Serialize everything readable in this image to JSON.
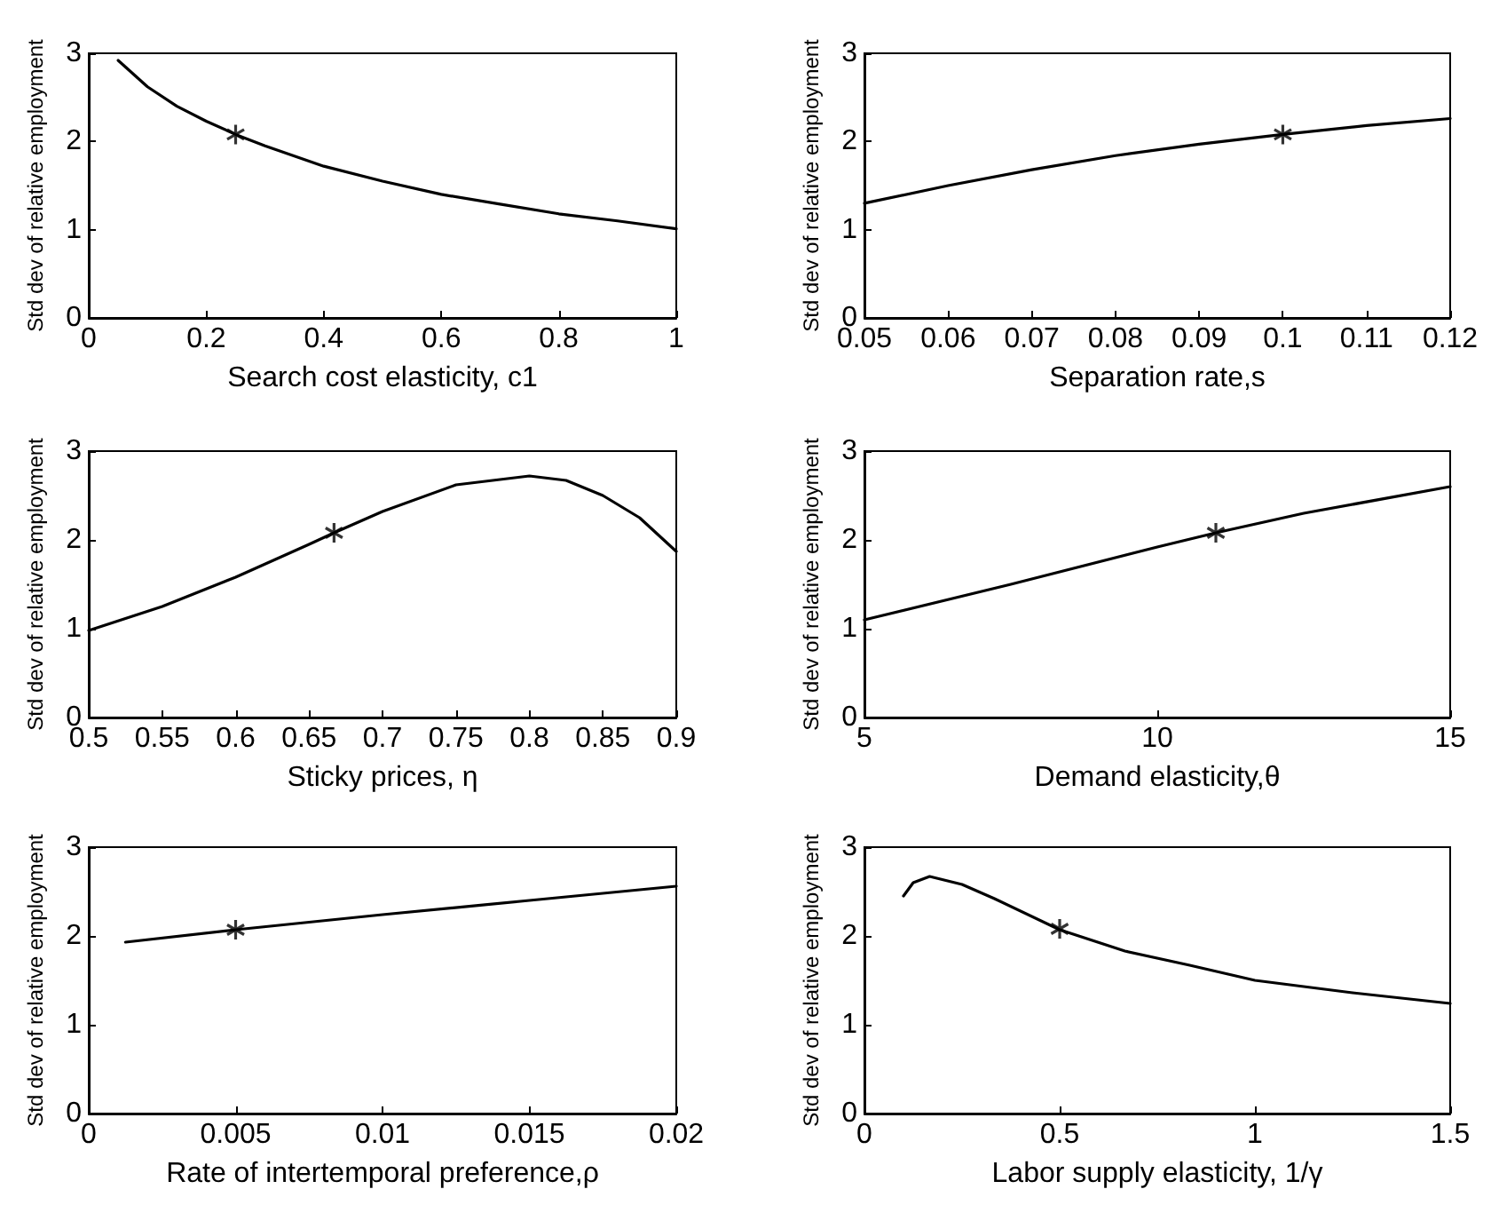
{
  "chart_data": [
    {
      "type": "line",
      "xlabel": "Search cost elasticity, c1",
      "ylabel": "Std dev of relative employment",
      "xlim": [
        0,
        1
      ],
      "xticks": [
        0,
        0.2,
        0.4,
        0.6,
        0.8,
        1
      ],
      "ylim": [
        0,
        3
      ],
      "yticks": [
        0,
        1,
        2,
        3
      ],
      "marker": "none",
      "series": [
        {
          "color": "#000000",
          "x": [
            0.05,
            0.1,
            0.15,
            0.2,
            0.25,
            0.3,
            0.4,
            0.5,
            0.6,
            0.7,
            0.8,
            0.9,
            1
          ],
          "values": [
            2.92,
            2.62,
            2.4,
            2.23,
            2.08,
            1.95,
            1.72,
            1.55,
            1.4,
            1.29,
            1.18,
            1.1,
            1.01
          ]
        },
        {
          "type": "scatter",
          "marker": "cross",
          "color": "#000000",
          "x": [
            0.25
          ],
          "values": [
            2.08
          ]
        }
      ]
    },
    {
      "type": "line",
      "xlabel": "Separation rate,s",
      "ylabel": "Std dev of relative employment",
      "xlim": [
        0.05,
        0.12
      ],
      "xticks": [
        0.05,
        0.06,
        0.07,
        0.08,
        0.09,
        0.1,
        0.11,
        0.12
      ],
      "ylim": [
        0,
        3
      ],
      "yticks": [
        0,
        1,
        2,
        3
      ],
      "marker": "none",
      "series": [
        {
          "color": "#000000",
          "x": [
            0.05,
            0.06,
            0.07,
            0.08,
            0.09,
            0.1,
            0.11,
            0.12
          ],
          "values": [
            1.3,
            1.5,
            1.68,
            1.84,
            1.97,
            2.08,
            2.18,
            2.26
          ]
        },
        {
          "type": "scatter",
          "marker": "cross",
          "color": "#000000",
          "x": [
            0.1
          ],
          "values": [
            2.08
          ]
        }
      ]
    },
    {
      "type": "line",
      "xlabel": "Sticky prices, η",
      "ylabel": "Std dev of relative employment",
      "xlim": [
        0.5,
        0.9
      ],
      "xticks": [
        0.5,
        0.55,
        0.6,
        0.65,
        0.7,
        0.75,
        0.8,
        0.85,
        0.9
      ],
      "ylim": [
        0,
        3
      ],
      "yticks": [
        0,
        1,
        2,
        3
      ],
      "marker": "none",
      "series": [
        {
          "color": "#000000",
          "x": [
            0.5,
            0.55,
            0.6,
            0.65,
            0.667,
            0.7,
            0.75,
            0.8,
            0.825,
            0.85,
            0.875,
            0.9
          ],
          "values": [
            0.98,
            1.25,
            1.58,
            1.95,
            2.08,
            2.32,
            2.62,
            2.72,
            2.67,
            2.5,
            2.25,
            1.87
          ]
        },
        {
          "type": "scatter",
          "marker": "cross",
          "color": "#000000",
          "x": [
            0.667
          ],
          "values": [
            2.08
          ]
        }
      ]
    },
    {
      "type": "line",
      "xlabel": "Demand elasticity,θ",
      "ylabel": "Std dev of relative employment",
      "xlim": [
        5,
        15
      ],
      "xticks": [
        5,
        10,
        15
      ],
      "ylim": [
        0,
        3
      ],
      "yticks": [
        0,
        1,
        2,
        3
      ],
      "marker": "none",
      "series": [
        {
          "color": "#000000",
          "x": [
            5,
            7.5,
            10,
            11,
            12.5,
            15
          ],
          "values": [
            1.1,
            1.5,
            1.92,
            2.08,
            2.3,
            2.6
          ]
        },
        {
          "type": "scatter",
          "marker": "cross",
          "color": "#000000",
          "x": [
            11
          ],
          "values": [
            2.08
          ]
        }
      ]
    },
    {
      "type": "line",
      "xlabel": "Rate of intertemporal preference,ρ",
      "ylabel": "Std dev of relative employment",
      "xlim": [
        0,
        0.02
      ],
      "xticks": [
        0,
        0.005,
        0.01,
        0.015,
        0.02
      ],
      "ylim": [
        0,
        3
      ],
      "yticks": [
        0,
        1,
        2,
        3
      ],
      "marker": "none",
      "series": [
        {
          "color": "#000000",
          "x": [
            0.00125,
            0.005,
            0.01,
            0.015,
            0.02
          ],
          "values": [
            1.93,
            2.07,
            2.24,
            2.4,
            2.56
          ]
        },
        {
          "type": "scatter",
          "marker": "cross",
          "color": "#000000",
          "x": [
            0.005
          ],
          "values": [
            2.07
          ]
        }
      ]
    },
    {
      "type": "line",
      "xlabel": "Labor supply elasticity, 1/γ",
      "ylabel": "Std dev of relative employment",
      "xlim": [
        0,
        1.5
      ],
      "xticks": [
        0,
        0.5,
        1,
        1.5
      ],
      "ylim": [
        0,
        3
      ],
      "yticks": [
        0,
        1,
        2,
        3
      ],
      "marker": "none",
      "series": [
        {
          "color": "#000000",
          "x": [
            0.1,
            0.125,
            0.167,
            0.25,
            0.333,
            0.5,
            0.667,
            0.833,
            1,
            1.25,
            1.5
          ],
          "values": [
            2.45,
            2.6,
            2.67,
            2.58,
            2.42,
            2.07,
            1.83,
            1.67,
            1.5,
            1.36,
            1.24
          ]
        },
        {
          "type": "scatter",
          "marker": "cross",
          "color": "#000000",
          "x": [
            0.5
          ],
          "values": [
            2.08
          ]
        }
      ]
    }
  ]
}
